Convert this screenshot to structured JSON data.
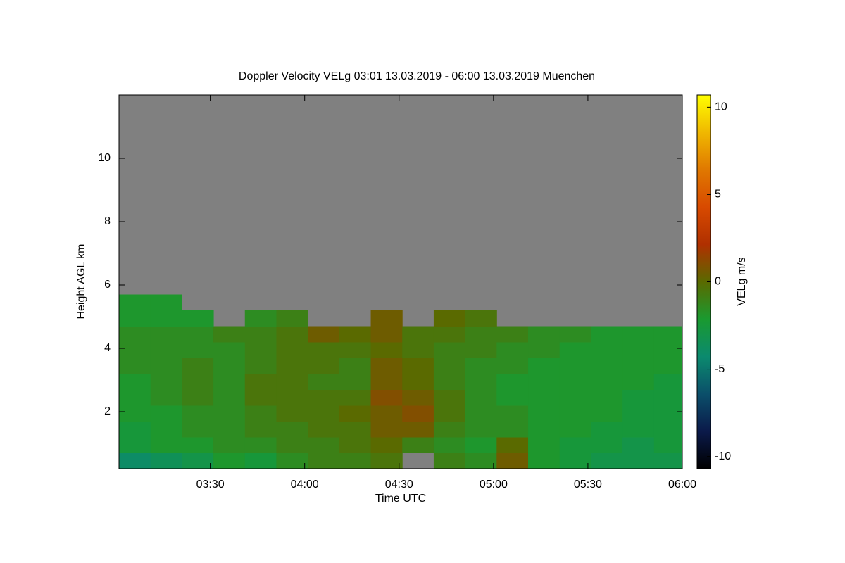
{
  "chart_data": {
    "type": "heatmap",
    "title": "Doppler Velocity VELg   03:01 13.03.2019 - 06:00 13.03.2019 Muenchen",
    "x_label": "Time UTC",
    "y_label": "Height AGL km",
    "colorbar_label": "VELg m/s",
    "x": [
      186,
      196,
      206,
      216,
      226,
      236,
      246,
      256,
      266,
      276,
      286,
      296,
      306,
      316,
      326,
      336,
      346,
      356
    ],
    "y": [
      0.45,
      0.95,
      1.45,
      1.95,
      2.45,
      2.95,
      3.45,
      3.95,
      4.45,
      4.95,
      5.45
    ],
    "values": [
      [
        -4,
        -3.5,
        -3,
        -2,
        -2.5,
        -1.5,
        -1,
        -1,
        -0.5,
        null,
        -1,
        -1.5,
        0.5,
        -2,
        -2.5,
        -3,
        -3,
        -3
      ],
      [
        -2.5,
        -2,
        -2,
        -1.5,
        -1.5,
        -1,
        -1,
        -0.5,
        0,
        -1,
        -1.5,
        -2,
        0,
        -2,
        -2.5,
        -2.5,
        -3,
        -2.5
      ],
      [
        -2.5,
        -2,
        -1.5,
        -1.5,
        -1,
        -1,
        -0.5,
        -0.5,
        0.5,
        0.5,
        -1,
        -1.5,
        -1.5,
        -2,
        -2,
        -2.5,
        -2.5,
        -2.5
      ],
      [
        -2,
        -2,
        -1.5,
        -1.5,
        -1,
        -0.5,
        -0.5,
        0,
        0.5,
        1,
        -0.5,
        -1.5,
        -1.5,
        -2,
        -2,
        -2,
        -2.5,
        -2.5
      ],
      [
        -2,
        -1.5,
        -1,
        -1.5,
        -0.5,
        -0.5,
        -0.5,
        -0.5,
        1,
        0.5,
        -0.5,
        -1.5,
        -2,
        -2,
        -2,
        -2,
        -2.5,
        -2.5
      ],
      [
        -2,
        -1.5,
        -1,
        -1.5,
        -0.5,
        -0.5,
        -1,
        -1,
        0.5,
        0,
        -1,
        -1.5,
        -2,
        -2,
        -2,
        -2,
        -2,
        -2.5
      ],
      [
        -1.5,
        -1.5,
        -1,
        -1.5,
        -1,
        -0.5,
        -0.5,
        -1,
        0.5,
        0,
        -1,
        -1.5,
        -1.5,
        -2,
        -2,
        -2,
        -2,
        -2
      ],
      [
        -1.5,
        -1.5,
        -1.5,
        -1.5,
        -1,
        -0.5,
        -0.5,
        -0.5,
        0,
        -0.5,
        -1,
        -1,
        -1.5,
        -1.5,
        -2,
        -2,
        -2,
        -2
      ],
      [
        -1.5,
        -1.5,
        -1.5,
        -1,
        -1,
        -0.5,
        0.5,
        0,
        0.5,
        -0.5,
        -0.5,
        -1,
        -1,
        -1.5,
        -1.5,
        -2,
        -2,
        -2
      ],
      [
        -2,
        -2,
        -2,
        null,
        -1.5,
        -1,
        null,
        null,
        0.5,
        null,
        0,
        -0.5,
        null,
        null,
        null,
        null,
        null,
        null
      ],
      [
        -2,
        -2,
        null,
        null,
        null,
        null,
        null,
        null,
        null,
        null,
        null,
        null,
        null,
        null,
        null,
        null,
        null,
        null
      ]
    ],
    "xlim": [
      181,
      360
    ],
    "xticks": [
      {
        "value": 210,
        "label": "03:30"
      },
      {
        "value": 240,
        "label": "04:00"
      },
      {
        "value": 270,
        "label": "04:30"
      },
      {
        "value": 300,
        "label": "05:00"
      },
      {
        "value": 330,
        "label": "05:30"
      },
      {
        "value": 360,
        "label": "06:00"
      }
    ],
    "ylim": [
      0.2,
      12
    ],
    "yticks": [
      2,
      4,
      6,
      8,
      10
    ],
    "zlim": [
      -10.7,
      10.7
    ],
    "zticks": [
      -10,
      -5,
      0,
      5,
      10
    ],
    "colormap": [
      "#000000",
      "#0b1a4a",
      "#0b4f6a",
      "#0b8a6e",
      "#1a9a30",
      "#5a6a00",
      "#b03000",
      "#d84a00",
      "#e07800",
      "#f0b800",
      "#ffff00"
    ],
    "background": "#808080"
  }
}
